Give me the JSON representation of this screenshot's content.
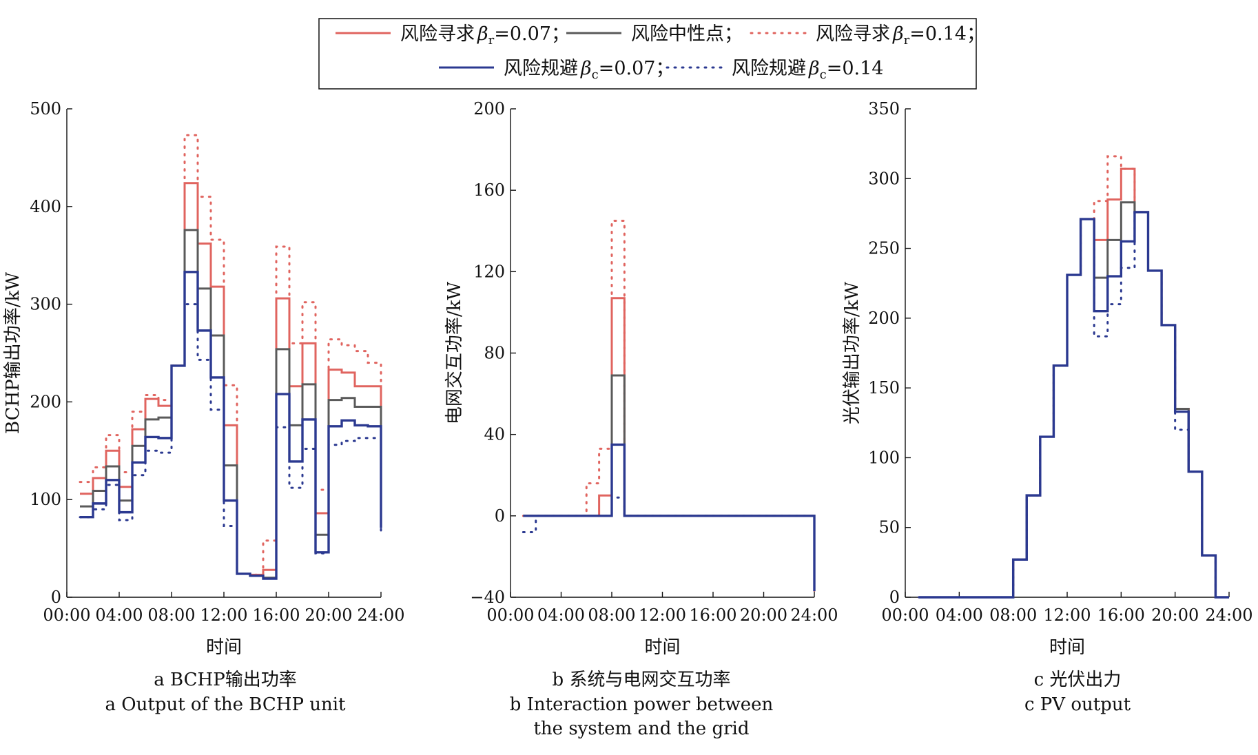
{
  "legend": [
    {
      "key": "seek007",
      "label_pre": "风险寻求",
      "label_sym": "β",
      "label_sub": "r",
      "label_post": "=0.07；",
      "color": "#e0645f",
      "dash": "solid"
    },
    {
      "key": "neutral",
      "label_pre": "风险中性点；",
      "label_sym": "",
      "label_sub": "",
      "label_post": "",
      "color": "#5a5a5a",
      "dash": "solid"
    },
    {
      "key": "seek014",
      "label_pre": "风险寻求",
      "label_sym": "β",
      "label_sub": "r",
      "label_post": "=0.14；",
      "color": "#e0645f",
      "dash": "dotted"
    },
    {
      "key": "avoid007",
      "label_pre": "风险规避",
      "label_sym": "β",
      "label_sub": "c",
      "label_post": "=0.07；",
      "color": "#2b3990",
      "dash": "solid"
    },
    {
      "key": "avoid014",
      "label_pre": "风险规避",
      "label_sym": "β",
      "label_sub": "c",
      "label_post": "=0.14",
      "color": "#2b3990",
      "dash": "dotted"
    }
  ],
  "chart_data": [
    {
      "type": "line",
      "step": true,
      "caption_zh": "a  BCHP输出功率",
      "caption_en": [
        "a  Output of the BCHP unit"
      ],
      "xlabel": "时间",
      "ylabel": "BCHP输出功率/kW",
      "x_ticks": [
        "00:00",
        "04:00",
        "08:00",
        "12:00",
        "16:00",
        "20:00",
        "24:00"
      ],
      "xlim": [
        0,
        24
      ],
      "ylim": [
        0,
        500
      ],
      "y_ticks": [
        "0",
        "100",
        "200",
        "300",
        "400",
        "500"
      ],
      "y_tick_values": [
        0,
        100,
        200,
        300,
        400,
        500
      ],
      "x_hours": [
        1,
        2,
        3,
        4,
        5,
        6,
        7,
        8,
        9,
        10,
        11,
        12,
        13,
        14,
        15,
        16,
        17,
        18,
        19,
        20,
        21,
        22,
        23,
        24
      ],
      "series": [
        {
          "key": "seek014",
          "values": [
            118,
            133,
            166,
            128,
            190,
            207,
            202,
            237,
            473,
            410,
            366,
            217,
            24,
            23,
            58,
            359,
            260,
            302,
            110,
            264,
            258,
            252,
            240,
            104
          ]
        },
        {
          "key": "seek007",
          "values": [
            106,
            122,
            150,
            113,
            172,
            203,
            196,
            237,
            424,
            362,
            318,
            176,
            24,
            23,
            28,
            306,
            216,
            260,
            86,
            233,
            230,
            216,
            216,
            92
          ]
        },
        {
          "key": "neutral",
          "values": [
            93,
            109,
            134,
            99,
            155,
            182,
            184,
            237,
            376,
            316,
            268,
            135,
            24,
            22,
            20,
            254,
            176,
            218,
            64,
            202,
            204,
            195,
            195,
            80
          ]
        },
        {
          "key": "avoid007",
          "values": [
            82,
            96,
            120,
            87,
            138,
            164,
            163,
            237,
            333,
            273,
            225,
            99,
            24,
            22,
            19,
            208,
            139,
            182,
            46,
            175,
            181,
            176,
            175,
            71
          ]
        },
        {
          "key": "avoid014",
          "values": [
            82,
            90,
            115,
            79,
            125,
            150,
            148,
            237,
            300,
            243,
            192,
            73,
            24,
            22,
            19,
            174,
            112,
            152,
            45,
            156,
            160,
            163,
            163,
            63
          ]
        }
      ]
    },
    {
      "type": "line",
      "step": true,
      "caption_zh": "b  系统与电网交互功率",
      "caption_en": [
        "b  Interaction power between",
        "the system and the grid"
      ],
      "xlabel": "时间",
      "ylabel": "电网交互功率/kW",
      "x_ticks": [
        "00:00",
        "04:00",
        "08:00",
        "12:00",
        "16:00",
        "20:00",
        "24:00"
      ],
      "xlim": [
        0,
        24
      ],
      "ylim": [
        -40,
        200
      ],
      "y_ticks": [
        "−40",
        "0",
        "40",
        "80",
        "120",
        "160",
        "200"
      ],
      "y_tick_values": [
        -40,
        0,
        40,
        80,
        120,
        160,
        200
      ],
      "x_hours": [
        1,
        2,
        3,
        4,
        5,
        6,
        7,
        8,
        9,
        10,
        11,
        12,
        13,
        14,
        15,
        16,
        17,
        18,
        19,
        20,
        21,
        22,
        23,
        24
      ],
      "series": [
        {
          "key": "seek014",
          "values": [
            0,
            0,
            0,
            0,
            0,
            16,
            33,
            145,
            0,
            0,
            0,
            0,
            0,
            0,
            0,
            0,
            0,
            0,
            0,
            0,
            0,
            0,
            0,
            -37
          ]
        },
        {
          "key": "seek007",
          "values": [
            0,
            0,
            0,
            0,
            0,
            0,
            10,
            107,
            0,
            0,
            0,
            0,
            0,
            0,
            0,
            0,
            0,
            0,
            0,
            0,
            0,
            0,
            0,
            -37
          ]
        },
        {
          "key": "neutral",
          "values": [
            0,
            0,
            0,
            0,
            0,
            0,
            0,
            69,
            0,
            0,
            0,
            0,
            0,
            0,
            0,
            0,
            0,
            0,
            0,
            0,
            0,
            0,
            0,
            -37
          ]
        },
        {
          "key": "avoid007",
          "values": [
            0,
            0,
            0,
            0,
            0,
            0,
            0,
            35,
            0,
            0,
            0,
            0,
            0,
            0,
            0,
            0,
            0,
            0,
            0,
            0,
            0,
            0,
            0,
            -37
          ]
        },
        {
          "key": "avoid014",
          "values": [
            -8,
            0,
            0,
            0,
            0,
            0,
            0,
            9,
            0,
            0,
            0,
            0,
            0,
            0,
            0,
            0,
            0,
            0,
            0,
            0,
            0,
            0,
            0,
            -37
          ]
        }
      ]
    },
    {
      "type": "line",
      "step": true,
      "caption_zh": "c  光伏出力",
      "caption_en": [
        "c  PV output"
      ],
      "xlabel": "时间",
      "ylabel": "光伏输出功率/kW",
      "x_ticks": [
        "00:00",
        "04:00",
        "08:00",
        "12:00",
        "16:00",
        "20:00",
        "24:00"
      ],
      "xlim": [
        0,
        24
      ],
      "ylim": [
        0,
        350
      ],
      "y_ticks": [
        "0",
        "50",
        "100",
        "150",
        "200",
        "250",
        "300",
        "350"
      ],
      "y_tick_values": [
        0,
        50,
        100,
        150,
        200,
        250,
        300,
        350
      ],
      "x_hours": [
        1,
        2,
        3,
        4,
        5,
        6,
        7,
        8,
        9,
        10,
        11,
        12,
        13,
        14,
        15,
        16,
        17,
        18,
        19,
        20,
        21,
        22,
        23,
        24
      ],
      "series": [
        {
          "key": "seek014",
          "values": [
            0,
            0,
            0,
            0,
            0,
            0,
            0,
            27,
            73,
            115,
            166,
            231,
            271,
            284,
            316,
            307,
            276,
            234,
            195,
            135,
            90,
            30,
            0,
            0
          ]
        },
        {
          "key": "seek007",
          "values": [
            0,
            0,
            0,
            0,
            0,
            0,
            0,
            27,
            73,
            115,
            166,
            231,
            271,
            256,
            285,
            307,
            276,
            234,
            195,
            135,
            90,
            30,
            0,
            0
          ]
        },
        {
          "key": "neutral",
          "values": [
            0,
            0,
            0,
            0,
            0,
            0,
            0,
            27,
            73,
            115,
            166,
            231,
            271,
            229,
            256,
            283,
            276,
            234,
            195,
            135,
            90,
            30,
            0,
            0
          ]
        },
        {
          "key": "avoid007",
          "values": [
            0,
            0,
            0,
            0,
            0,
            0,
            0,
            27,
            73,
            115,
            166,
            231,
            271,
            205,
            230,
            255,
            276,
            234,
            195,
            133,
            90,
            30,
            0,
            0
          ]
        },
        {
          "key": "avoid014",
          "values": [
            0,
            0,
            0,
            0,
            0,
            0,
            0,
            27,
            73,
            115,
            166,
            231,
            271,
            187,
            210,
            236,
            276,
            234,
            195,
            120,
            90,
            30,
            0,
            0
          ]
        }
      ]
    }
  ]
}
